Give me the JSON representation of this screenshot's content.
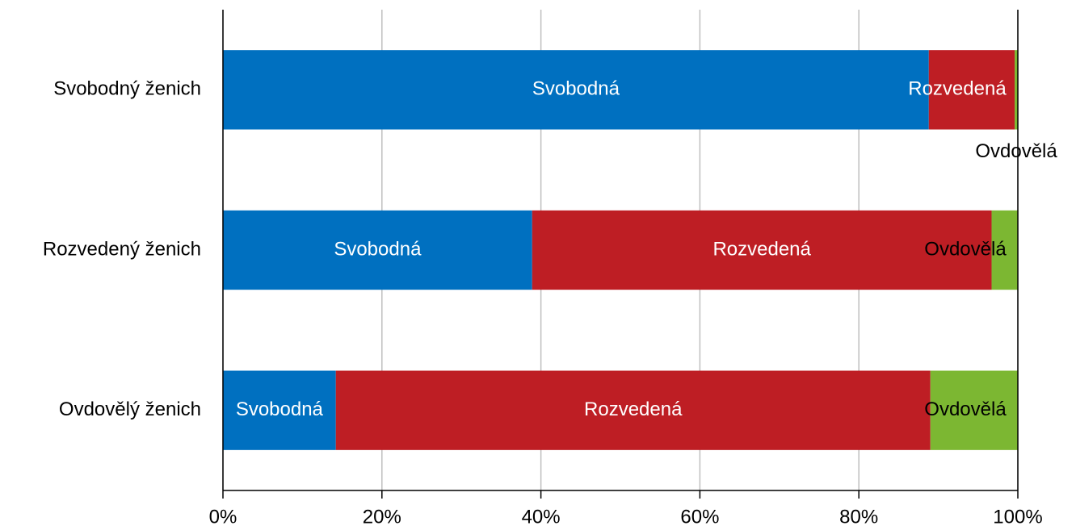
{
  "chart_data": {
    "type": "stacked-bar-horizontal",
    "categories": [
      "Svobodný ženich",
      "Rozvedený ženich",
      "Ovdovělý ženich"
    ],
    "series": [
      {
        "name": "Svobodná",
        "color": "#0070c0",
        "values": [
          88.8,
          38.9,
          14.2
        ]
      },
      {
        "name": "Rozvedená",
        "color": "#be1e24",
        "values": [
          10.8,
          57.8,
          74.8
        ]
      },
      {
        "name": "Ovdovělá",
        "color": "#7cb732",
        "values": [
          0.4,
          3.3,
          11.0
        ]
      }
    ],
    "xlim": [
      0,
      100
    ],
    "xticks": [
      {
        "value": 0,
        "label": "0%"
      },
      {
        "value": 20,
        "label": "20%"
      },
      {
        "value": 40,
        "label": "40%"
      },
      {
        "value": 60,
        "label": "60%"
      },
      {
        "value": 80,
        "label": "80%"
      },
      {
        "value": 100,
        "label": "100%"
      }
    ],
    "grid": true
  }
}
